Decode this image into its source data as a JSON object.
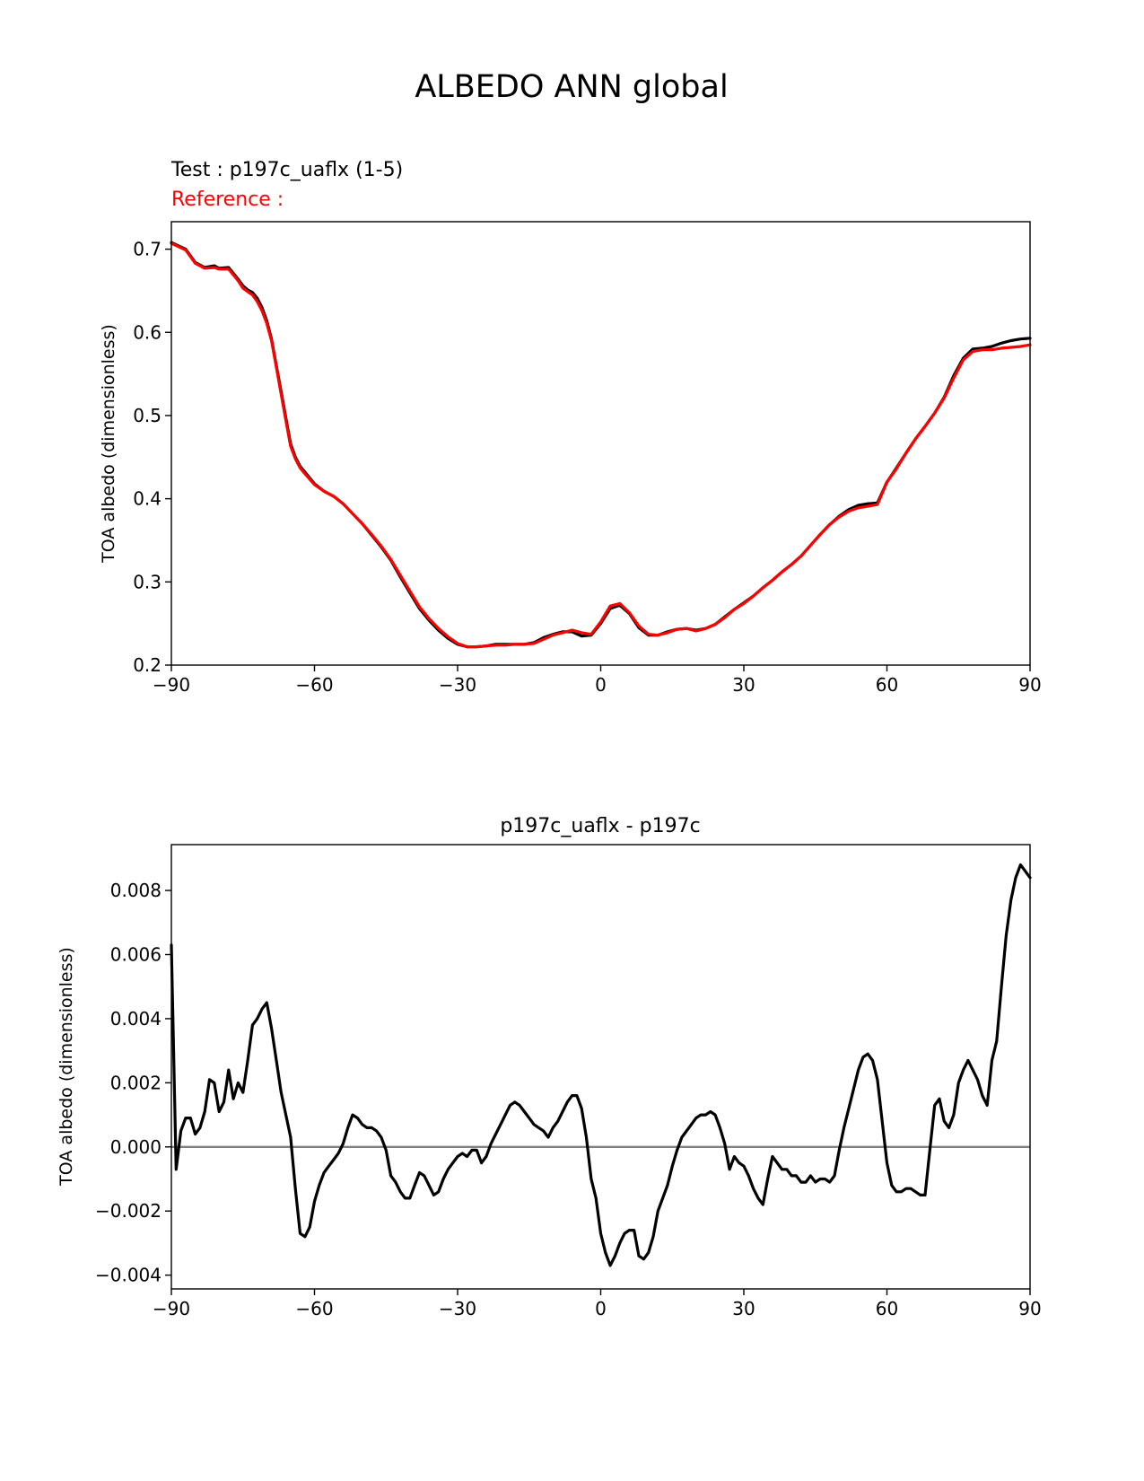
{
  "figure": {
    "title": "ALBEDO ANN global"
  },
  "chart_data": [
    {
      "type": "line",
      "test_label": "Test : p197c_uaflx (1-5)",
      "reference_label": "Reference :",
      "xlabel": "",
      "ylabel": "TOA albedo (dimensionless)",
      "xlim": [
        -90,
        90
      ],
      "ylim": [
        0.2,
        0.733
      ],
      "xticks": [
        -90,
        -60,
        -30,
        0,
        30,
        60,
        90
      ],
      "xtick_labels": [
        "−90",
        "−60",
        "−30",
        "0",
        "30",
        "60",
        "90"
      ],
      "yticks": [
        0.2,
        0.3,
        0.4,
        0.5,
        0.6,
        0.7
      ],
      "ytick_labels": [
        "0.2",
        "0.3",
        "0.4",
        "0.5",
        "0.6",
        "0.7"
      ],
      "grid": false,
      "series": [
        {
          "name": "test",
          "color": "#000000",
          "x": [
            -90,
            -87,
            -85,
            -83,
            -81,
            -80,
            -78,
            -76,
            -75,
            -74,
            -73,
            -72,
            -71,
            -70,
            -69,
            -68,
            -67,
            -66,
            -65,
            -64,
            -63,
            -62,
            -60,
            -58,
            -56,
            -54,
            -52,
            -50,
            -48,
            -46,
            -44,
            -42,
            -40,
            -38,
            -36,
            -34,
            -32,
            -30,
            -28,
            -26,
            -24,
            -22,
            -20,
            -18,
            -16,
            -14,
            -12,
            -10,
            -8,
            -6,
            -4,
            -2,
            0,
            2,
            4,
            6,
            8,
            10,
            12,
            14,
            16,
            18,
            20,
            22,
            24,
            26,
            28,
            30,
            32,
            34,
            36,
            38,
            40,
            42,
            44,
            46,
            48,
            50,
            52,
            54,
            56,
            58,
            60,
            62,
            64,
            66,
            68,
            70,
            72,
            74,
            76,
            78,
            80,
            82,
            84,
            86,
            88,
            90
          ],
          "y": [
            0.708,
            0.7,
            0.684,
            0.678,
            0.68,
            0.677,
            0.678,
            0.664,
            0.656,
            0.651,
            0.648,
            0.641,
            0.63,
            0.614,
            0.592,
            0.56,
            0.529,
            0.497,
            0.466,
            0.45,
            0.439,
            0.432,
            0.418,
            0.409,
            0.403,
            0.394,
            0.382,
            0.37,
            0.356,
            0.342,
            0.326,
            0.306,
            0.287,
            0.268,
            0.254,
            0.242,
            0.232,
            0.225,
            0.222,
            0.222,
            0.223,
            0.225,
            0.225,
            0.225,
            0.225,
            0.227,
            0.233,
            0.237,
            0.24,
            0.24,
            0.235,
            0.236,
            0.25,
            0.268,
            0.272,
            0.262,
            0.245,
            0.236,
            0.236,
            0.24,
            0.243,
            0.244,
            0.242,
            0.244,
            0.249,
            0.258,
            0.267,
            0.275,
            0.283,
            0.293,
            0.302,
            0.312,
            0.321,
            0.331,
            0.344,
            0.357,
            0.369,
            0.379,
            0.387,
            0.392,
            0.394,
            0.395,
            0.42,
            0.437,
            0.455,
            0.472,
            0.487,
            0.503,
            0.522,
            0.548,
            0.569,
            0.58,
            0.581,
            0.583,
            0.587,
            0.59,
            0.592,
            0.593
          ]
        },
        {
          "name": "reference",
          "color": "#ff0000",
          "x": [
            -90,
            -87,
            -85,
            -83,
            -81,
            -80,
            -78,
            -76,
            -75,
            -74,
            -73,
            -72,
            -71,
            -70,
            -69,
            -68,
            -67,
            -66,
            -65,
            -64,
            -63,
            -62,
            -60,
            -58,
            -56,
            -54,
            -52,
            -50,
            -48,
            -46,
            -44,
            -42,
            -40,
            -38,
            -36,
            -34,
            -32,
            -30,
            -28,
            -26,
            -24,
            -22,
            -20,
            -18,
            -16,
            -14,
            -12,
            -10,
            -8,
            -6,
            -4,
            -2,
            0,
            2,
            4,
            6,
            8,
            10,
            12,
            14,
            16,
            18,
            20,
            22,
            24,
            26,
            28,
            30,
            32,
            34,
            36,
            38,
            40,
            42,
            44,
            46,
            48,
            50,
            52,
            54,
            56,
            58,
            60,
            62,
            64,
            66,
            68,
            70,
            72,
            74,
            76,
            78,
            80,
            82,
            84,
            86,
            88,
            90
          ],
          "y": [
            0.707,
            0.699,
            0.683,
            0.677,
            0.678,
            0.676,
            0.676,
            0.662,
            0.653,
            0.649,
            0.645,
            0.637,
            0.626,
            0.611,
            0.59,
            0.558,
            0.526,
            0.494,
            0.463,
            0.448,
            0.437,
            0.43,
            0.417,
            0.409,
            0.403,
            0.394,
            0.382,
            0.37,
            0.357,
            0.343,
            0.327,
            0.308,
            0.289,
            0.27,
            0.256,
            0.244,
            0.234,
            0.226,
            0.222,
            0.222,
            0.223,
            0.224,
            0.224,
            0.225,
            0.225,
            0.226,
            0.231,
            0.236,
            0.239,
            0.242,
            0.239,
            0.237,
            0.252,
            0.271,
            0.274,
            0.263,
            0.247,
            0.237,
            0.236,
            0.239,
            0.243,
            0.244,
            0.241,
            0.244,
            0.249,
            0.257,
            0.267,
            0.274,
            0.283,
            0.293,
            0.302,
            0.312,
            0.321,
            0.331,
            0.344,
            0.357,
            0.369,
            0.378,
            0.385,
            0.389,
            0.391,
            0.393,
            0.42,
            0.436,
            0.455,
            0.472,
            0.487,
            0.503,
            0.521,
            0.545,
            0.567,
            0.577,
            0.579,
            0.579,
            0.581,
            0.582,
            0.583,
            0.585
          ]
        }
      ]
    },
    {
      "type": "line",
      "title": "p197c_uaflx - p197c",
      "xlabel": "",
      "ylabel": "TOA albedo (dimensionless)",
      "xlim": [
        -90,
        90
      ],
      "ylim": [
        -0.00443,
        0.00943
      ],
      "xticks": [
        -90,
        -60,
        -30,
        0,
        30,
        60,
        90
      ],
      "xtick_labels": [
        "−90",
        "−60",
        "−30",
        "0",
        "30",
        "60",
        "90"
      ],
      "yticks": [
        -0.004,
        -0.002,
        0.0,
        0.002,
        0.004,
        0.006,
        0.008
      ],
      "ytick_labels": [
        "−0.004",
        "−0.002",
        "0.000",
        "0.002",
        "0.004",
        "0.006",
        "0.008"
      ],
      "grid": false,
      "zero_line_color": "#808080",
      "series": [
        {
          "name": "difference",
          "color": "#000000",
          "x": [
            -90,
            -89,
            -88,
            -87,
            -86,
            -85,
            -84,
            -83,
            -82,
            -81,
            -80,
            -79,
            -78,
            -77,
            -76,
            -75,
            -74,
            -73,
            -72,
            -71,
            -70,
            -69,
            -68,
            -67,
            -66,
            -65,
            -64,
            -63,
            -62,
            -61,
            -60,
            -59,
            -58,
            -57,
            -56,
            -55,
            -54,
            -53,
            -52,
            -51,
            -50,
            -49,
            -48,
            -47,
            -46,
            -45,
            -44,
            -43,
            -42,
            -41,
            -40,
            -39,
            -38,
            -37,
            -36,
            -35,
            -34,
            -33,
            -32,
            -31,
            -30,
            -29,
            -28,
            -27,
            -26,
            -25,
            -24,
            -23,
            -22,
            -21,
            -20,
            -19,
            -18,
            -17,
            -16,
            -15,
            -14,
            -13,
            -12,
            -11,
            -10,
            -9,
            -8,
            -7,
            -6,
            -5,
            -4,
            -3,
            -2,
            -1,
            0,
            1,
            2,
            3,
            4,
            5,
            6,
            7,
            8,
            9,
            10,
            11,
            12,
            13,
            14,
            15,
            16,
            17,
            18,
            19,
            20,
            21,
            22,
            23,
            24,
            25,
            26,
            27,
            28,
            29,
            30,
            31,
            32,
            33,
            34,
            35,
            36,
            37,
            38,
            39,
            40,
            41,
            42,
            43,
            44,
            45,
            46,
            47,
            48,
            49,
            50,
            51,
            52,
            53,
            54,
            55,
            56,
            57,
            58,
            59,
            60,
            61,
            62,
            63,
            64,
            65,
            66,
            67,
            68,
            69,
            70,
            71,
            72,
            73,
            74,
            75,
            76,
            77,
            78,
            79,
            80,
            81,
            82,
            83,
            84,
            85,
            86,
            87,
            88,
            89,
            90
          ],
          "y": [
            0.0063,
            -0.0007,
            0.0005,
            0.0009,
            0.0009,
            0.0004,
            0.0006,
            0.0011,
            0.0021,
            0.002,
            0.0011,
            0.0014,
            0.0024,
            0.0015,
            0.002,
            0.0017,
            0.0027,
            0.0038,
            0.004,
            0.0043,
            0.0045,
            0.0037,
            0.0027,
            0.0017,
            0.001,
            0.0003,
            -0.0013,
            -0.0027,
            -0.0028,
            -0.0025,
            -0.0017,
            -0.0012,
            -0.0008,
            -0.0006,
            -0.0004,
            -0.0002,
            0.0001,
            0.0006,
            0.001,
            0.0009,
            0.0007,
            0.0006,
            0.0006,
            0.0005,
            0.0003,
            -0.0001,
            -0.0009,
            -0.0011,
            -0.0014,
            -0.0016,
            -0.0016,
            -0.0012,
            -0.0008,
            -0.0009,
            -0.0012,
            -0.0015,
            -0.0014,
            -0.001,
            -0.0007,
            -0.0005,
            -0.0003,
            -0.0002,
            -0.0003,
            -0.0001,
            -0.0001,
            -0.0005,
            -0.0003,
            0.0001,
            0.0004,
            0.0007,
            0.001,
            0.0013,
            0.0014,
            0.0013,
            0.0011,
            0.0009,
            0.0007,
            0.0006,
            0.0005,
            0.0003,
            0.0006,
            0.0008,
            0.0011,
            0.0014,
            0.0016,
            0.0016,
            0.0012,
            0.0003,
            -0.001,
            -0.0016,
            -0.0027,
            -0.0033,
            -0.0037,
            -0.0034,
            -0.003,
            -0.0027,
            -0.0026,
            -0.0026,
            -0.0034,
            -0.0035,
            -0.0033,
            -0.0028,
            -0.002,
            -0.0016,
            -0.0012,
            -0.0006,
            -0.0001,
            0.0003,
            0.0005,
            0.0007,
            0.0009,
            0.001,
            0.001,
            0.0011,
            0.001,
            0.0006,
            0.0001,
            -0.0007,
            -0.0003,
            -0.0005,
            -0.0006,
            -0.0009,
            -0.0013,
            -0.0016,
            -0.0018,
            -0.001,
            -0.0003,
            -0.0005,
            -0.0007,
            -0.0007,
            -0.0009,
            -0.0009,
            -0.0011,
            -0.0011,
            -0.0009,
            -0.0011,
            -0.001,
            -0.001,
            -0.0011,
            -0.0009,
            -0.0001,
            0.0006,
            0.0012,
            0.0018,
            0.0024,
            0.0028,
            0.0029,
            0.0027,
            0.0021,
            0.0008,
            -0.0005,
            -0.0012,
            -0.0014,
            -0.0014,
            -0.0013,
            -0.0013,
            -0.0014,
            -0.0015,
            -0.0015,
            -0.0001,
            0.0013,
            0.0015,
            0.0008,
            0.0006,
            0.001,
            0.002,
            0.0024,
            0.0027,
            0.0024,
            0.0021,
            0.0016,
            0.0013,
            0.0027,
            0.0033,
            0.005,
            0.0066,
            0.0077,
            0.0084,
            0.0088,
            0.0086,
            0.0084
          ]
        }
      ]
    }
  ]
}
